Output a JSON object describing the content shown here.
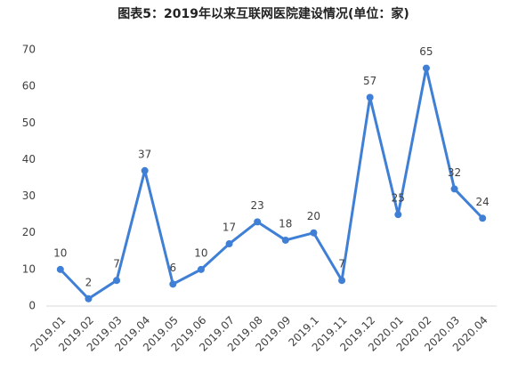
{
  "chart_data": {
    "type": "line",
    "title": "图表5：2019年以来互联网医院建设情况(单位：家)",
    "categories": [
      "2019.01",
      "2019.02",
      "2019.03",
      "2019.04",
      "2019.05",
      "2019.06",
      "2019.07",
      "2019.08",
      "2019.09",
      "2019.1",
      "2019.11",
      "2019.12",
      "2020.01",
      "2020.02",
      "2020.03",
      "2020.04"
    ],
    "values": [
      10,
      2,
      7,
      37,
      6,
      10,
      17,
      23,
      18,
      20,
      7,
      57,
      25,
      65,
      32,
      24
    ],
    "color": "#3f7fd5",
    "ylim": [
      0,
      70
    ],
    "yticks": [
      0,
      10,
      20,
      30,
      40,
      50,
      60,
      70
    ],
    "grid": false
  }
}
